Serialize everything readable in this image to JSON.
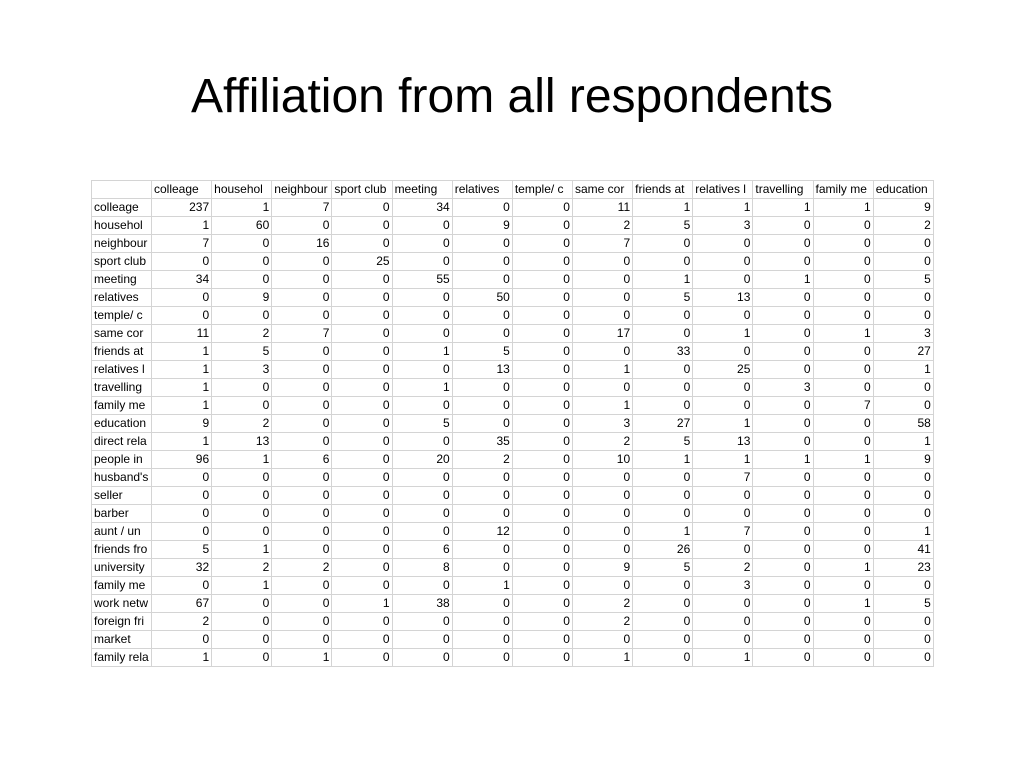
{
  "title": "Affiliation from all respondents",
  "table": {
    "columns": [
      "colleage",
      "househol",
      "neighbour",
      "sport club",
      "meeting",
      "relatives",
      "temple/ c",
      "same cor",
      "friends at",
      "relatives l",
      "travelling",
      "family me",
      "education"
    ],
    "rows": [
      {
        "label": "colleage",
        "values": [
          237,
          1,
          7,
          0,
          34,
          0,
          0,
          11,
          1,
          1,
          1,
          1,
          9
        ]
      },
      {
        "label": "househol",
        "values": [
          1,
          60,
          0,
          0,
          0,
          9,
          0,
          2,
          5,
          3,
          0,
          0,
          2
        ]
      },
      {
        "label": "neighbour",
        "values": [
          7,
          0,
          16,
          0,
          0,
          0,
          0,
          7,
          0,
          0,
          0,
          0,
          0
        ]
      },
      {
        "label": "sport club",
        "values": [
          0,
          0,
          0,
          25,
          0,
          0,
          0,
          0,
          0,
          0,
          0,
          0,
          0
        ]
      },
      {
        "label": "meeting",
        "values": [
          34,
          0,
          0,
          0,
          55,
          0,
          0,
          0,
          1,
          0,
          1,
          0,
          5
        ]
      },
      {
        "label": "relatives",
        "values": [
          0,
          9,
          0,
          0,
          0,
          50,
          0,
          0,
          5,
          13,
          0,
          0,
          0
        ]
      },
      {
        "label": "temple/ c",
        "values": [
          0,
          0,
          0,
          0,
          0,
          0,
          0,
          0,
          0,
          0,
          0,
          0,
          0
        ]
      },
      {
        "label": "same cor",
        "values": [
          11,
          2,
          7,
          0,
          0,
          0,
          0,
          17,
          0,
          1,
          0,
          1,
          3
        ]
      },
      {
        "label": "friends at",
        "values": [
          1,
          5,
          0,
          0,
          1,
          5,
          0,
          0,
          33,
          0,
          0,
          0,
          27
        ]
      },
      {
        "label": "relatives l",
        "values": [
          1,
          3,
          0,
          0,
          0,
          13,
          0,
          1,
          0,
          25,
          0,
          0,
          1
        ]
      },
      {
        "label": "travelling",
        "values": [
          1,
          0,
          0,
          0,
          1,
          0,
          0,
          0,
          0,
          0,
          3,
          0,
          0
        ]
      },
      {
        "label": "family me",
        "values": [
          1,
          0,
          0,
          0,
          0,
          0,
          0,
          1,
          0,
          0,
          0,
          7,
          0
        ]
      },
      {
        "label": "education",
        "values": [
          9,
          2,
          0,
          0,
          5,
          0,
          0,
          3,
          27,
          1,
          0,
          0,
          58
        ]
      },
      {
        "label": "direct rela",
        "values": [
          1,
          13,
          0,
          0,
          0,
          35,
          0,
          2,
          5,
          13,
          0,
          0,
          1
        ]
      },
      {
        "label": "people in",
        "values": [
          96,
          1,
          6,
          0,
          20,
          2,
          0,
          10,
          1,
          1,
          1,
          1,
          9
        ]
      },
      {
        "label": "husband's",
        "values": [
          0,
          0,
          0,
          0,
          0,
          0,
          0,
          0,
          0,
          7,
          0,
          0,
          0
        ]
      },
      {
        "label": "seller",
        "values": [
          0,
          0,
          0,
          0,
          0,
          0,
          0,
          0,
          0,
          0,
          0,
          0,
          0
        ]
      },
      {
        "label": "barber",
        "values": [
          0,
          0,
          0,
          0,
          0,
          0,
          0,
          0,
          0,
          0,
          0,
          0,
          0
        ]
      },
      {
        "label": "aunt / un",
        "values": [
          0,
          0,
          0,
          0,
          0,
          12,
          0,
          0,
          1,
          7,
          0,
          0,
          1
        ]
      },
      {
        "label": "friends fro",
        "values": [
          5,
          1,
          0,
          0,
          6,
          0,
          0,
          0,
          26,
          0,
          0,
          0,
          41
        ]
      },
      {
        "label": "university",
        "values": [
          32,
          2,
          2,
          0,
          8,
          0,
          0,
          9,
          5,
          2,
          0,
          1,
          23
        ]
      },
      {
        "label": "family me",
        "values": [
          0,
          1,
          0,
          0,
          0,
          1,
          0,
          0,
          0,
          3,
          0,
          0,
          0
        ]
      },
      {
        "label": "work netw",
        "values": [
          67,
          0,
          0,
          1,
          38,
          0,
          0,
          2,
          0,
          0,
          0,
          1,
          5
        ]
      },
      {
        "label": "foreign fri",
        "values": [
          2,
          0,
          0,
          0,
          0,
          0,
          0,
          2,
          0,
          0,
          0,
          0,
          0
        ]
      },
      {
        "label": "market",
        "values": [
          0,
          0,
          0,
          0,
          0,
          0,
          0,
          0,
          0,
          0,
          0,
          0,
          0
        ]
      },
      {
        "label": "family rela",
        "values": [
          1,
          0,
          1,
          0,
          0,
          0,
          0,
          1,
          0,
          1,
          0,
          0,
          0
        ]
      }
    ]
  }
}
